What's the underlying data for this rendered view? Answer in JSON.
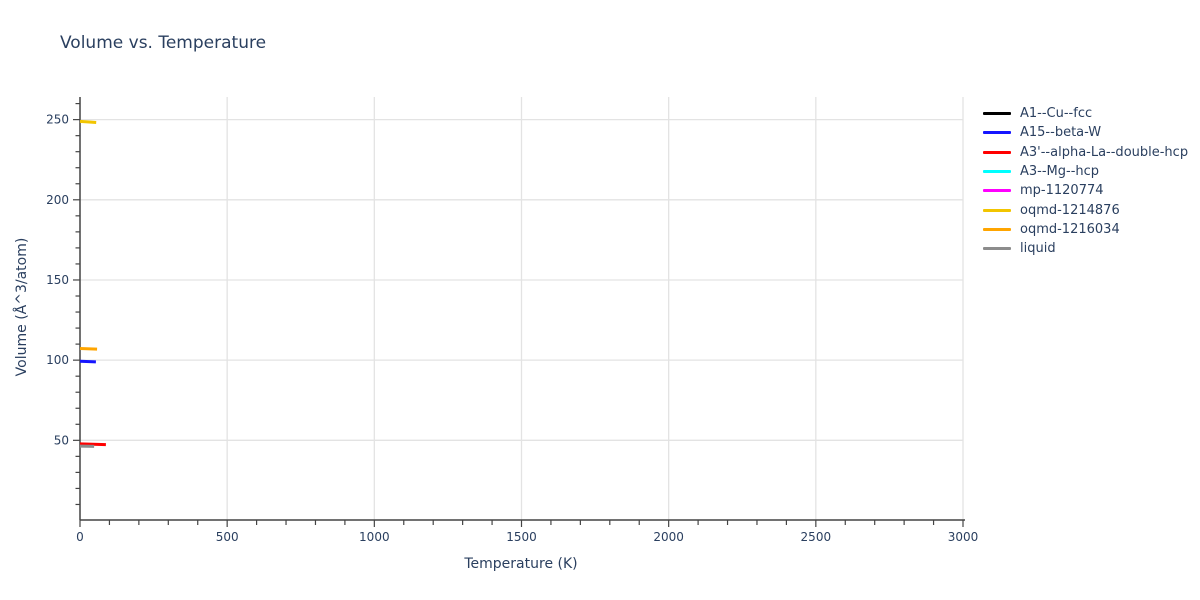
{
  "chart_data": {
    "type": "line",
    "title": "Volume vs. Temperature",
    "xlabel": "Temperature (K)",
    "ylabel": "Volume (Å^3/atom)",
    "xlim": [
      0,
      3000
    ],
    "ylim": [
      0,
      264
    ],
    "x_ticks": [
      0,
      500,
      1000,
      1500,
      2000,
      2500,
      3000
    ],
    "x_tick_labels": [
      "0",
      "500",
      "1000",
      "1500",
      "2000",
      "2500",
      "3000"
    ],
    "x_minor_tick_step": 100,
    "y_ticks": [
      50,
      100,
      150,
      200,
      250
    ],
    "y_tick_labels": [
      "50",
      "100",
      "150",
      "200",
      "250"
    ],
    "y_minor_tick_step": 10,
    "grid": true,
    "legend_position": "right",
    "series": [
      {
        "name": "A1--Cu--fcc",
        "color": "#000000",
        "visible_in_plot": false,
        "points": []
      },
      {
        "name": "A15--beta-W",
        "color": "#1515ff",
        "visible_in_plot": true,
        "points": [
          [
            0,
            99.3
          ],
          [
            54,
            98.9
          ]
        ]
      },
      {
        "name": "A3'--alpha-La--double-hcp",
        "color": "#ff0000",
        "visible_in_plot": true,
        "points": [
          [
            0,
            47.8
          ],
          [
            88,
            47.3
          ]
        ]
      },
      {
        "name": "A3--Mg--hcp",
        "color": "#00ffff",
        "visible_in_plot": false,
        "points": []
      },
      {
        "name": "mp-1120774",
        "color": "#ff00ff",
        "visible_in_plot": false,
        "points": []
      },
      {
        "name": "oqmd-1214876",
        "color": "#f2c500",
        "visible_in_plot": true,
        "points": [
          [
            0,
            248.9
          ],
          [
            55,
            248.2
          ]
        ]
      },
      {
        "name": "oqmd-1216034",
        "color": "#ffa500",
        "visible_in_plot": true,
        "points": [
          [
            0,
            107.3
          ],
          [
            58,
            106.9
          ]
        ]
      },
      {
        "name": "liquid",
        "color": "#8c8c8c",
        "visible_in_plot": true,
        "points": [
          [
            0,
            46.4
          ],
          [
            48,
            46.2
          ]
        ]
      }
    ],
    "style_colors": {
      "text": "#2a3f5f",
      "gridline": "#e3e3e3",
      "axis_line": "#444444"
    }
  }
}
